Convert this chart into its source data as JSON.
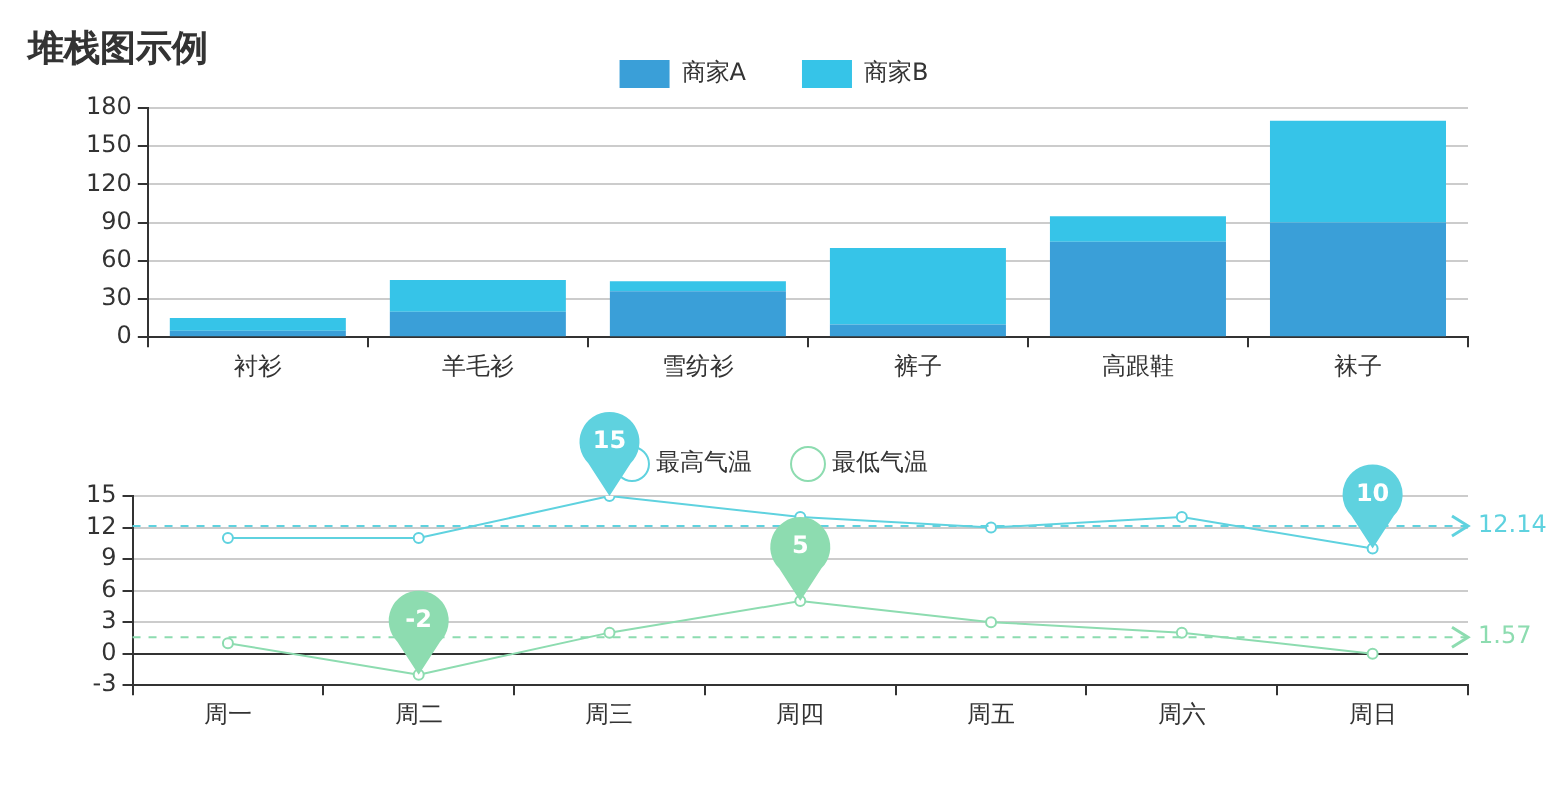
{
  "chart_data": [
    {
      "type": "bar",
      "title": "堆栈图示例",
      "categories": [
        "衬衫",
        "羊毛衫",
        "雪纺衫",
        "裤子",
        "高跟鞋",
        "袜子"
      ],
      "stacked": true,
      "series": [
        {
          "name": "商家A",
          "color": "#3a9fd8",
          "values": [
            5,
            20,
            36,
            10,
            75,
            90
          ]
        },
        {
          "name": "商家B",
          "color": "#36c4e8",
          "values": [
            10,
            25,
            8,
            60,
            20,
            80
          ]
        }
      ],
      "ylim": [
        0,
        180
      ],
      "yticks": [
        0,
        30,
        60,
        90,
        120,
        150,
        180
      ],
      "grid": "y",
      "legend": "top"
    },
    {
      "type": "line",
      "categories": [
        "周一",
        "周二",
        "周三",
        "周四",
        "周五",
        "周六",
        "周日"
      ],
      "marker": "circle",
      "series": [
        {
          "name": "最高气温",
          "color": "#5fd2df",
          "values": [
            11,
            11,
            15,
            13,
            12,
            13,
            10
          ]
        },
        {
          "name": "最低气温",
          "color": "#8ddcb0",
          "values": [
            1,
            -2,
            2,
            5,
            3,
            2,
            0
          ]
        }
      ],
      "ylim": [
        -3,
        15
      ],
      "yticks": [
        -3,
        0,
        3,
        6,
        9,
        12,
        15
      ],
      "grid": "y",
      "legend": "top",
      "ref_lines": [
        {
          "axis": "y",
          "value": 12.14,
          "label": "12.14",
          "color": "#5fd2df",
          "line_style": "dashed"
        },
        {
          "axis": "y",
          "value": 1.57,
          "label": "1.57",
          "color": "#8ddcb0",
          "line_style": "dashed"
        }
      ],
      "annotations": [
        {
          "text": "15",
          "x": "周三",
          "y": 15
        },
        {
          "text": "10",
          "x": "周日",
          "y": 10
        },
        {
          "text": "5",
          "x": "周四",
          "y": 5
        },
        {
          "text": "-2",
          "x": "周二",
          "y": -2
        }
      ]
    }
  ]
}
